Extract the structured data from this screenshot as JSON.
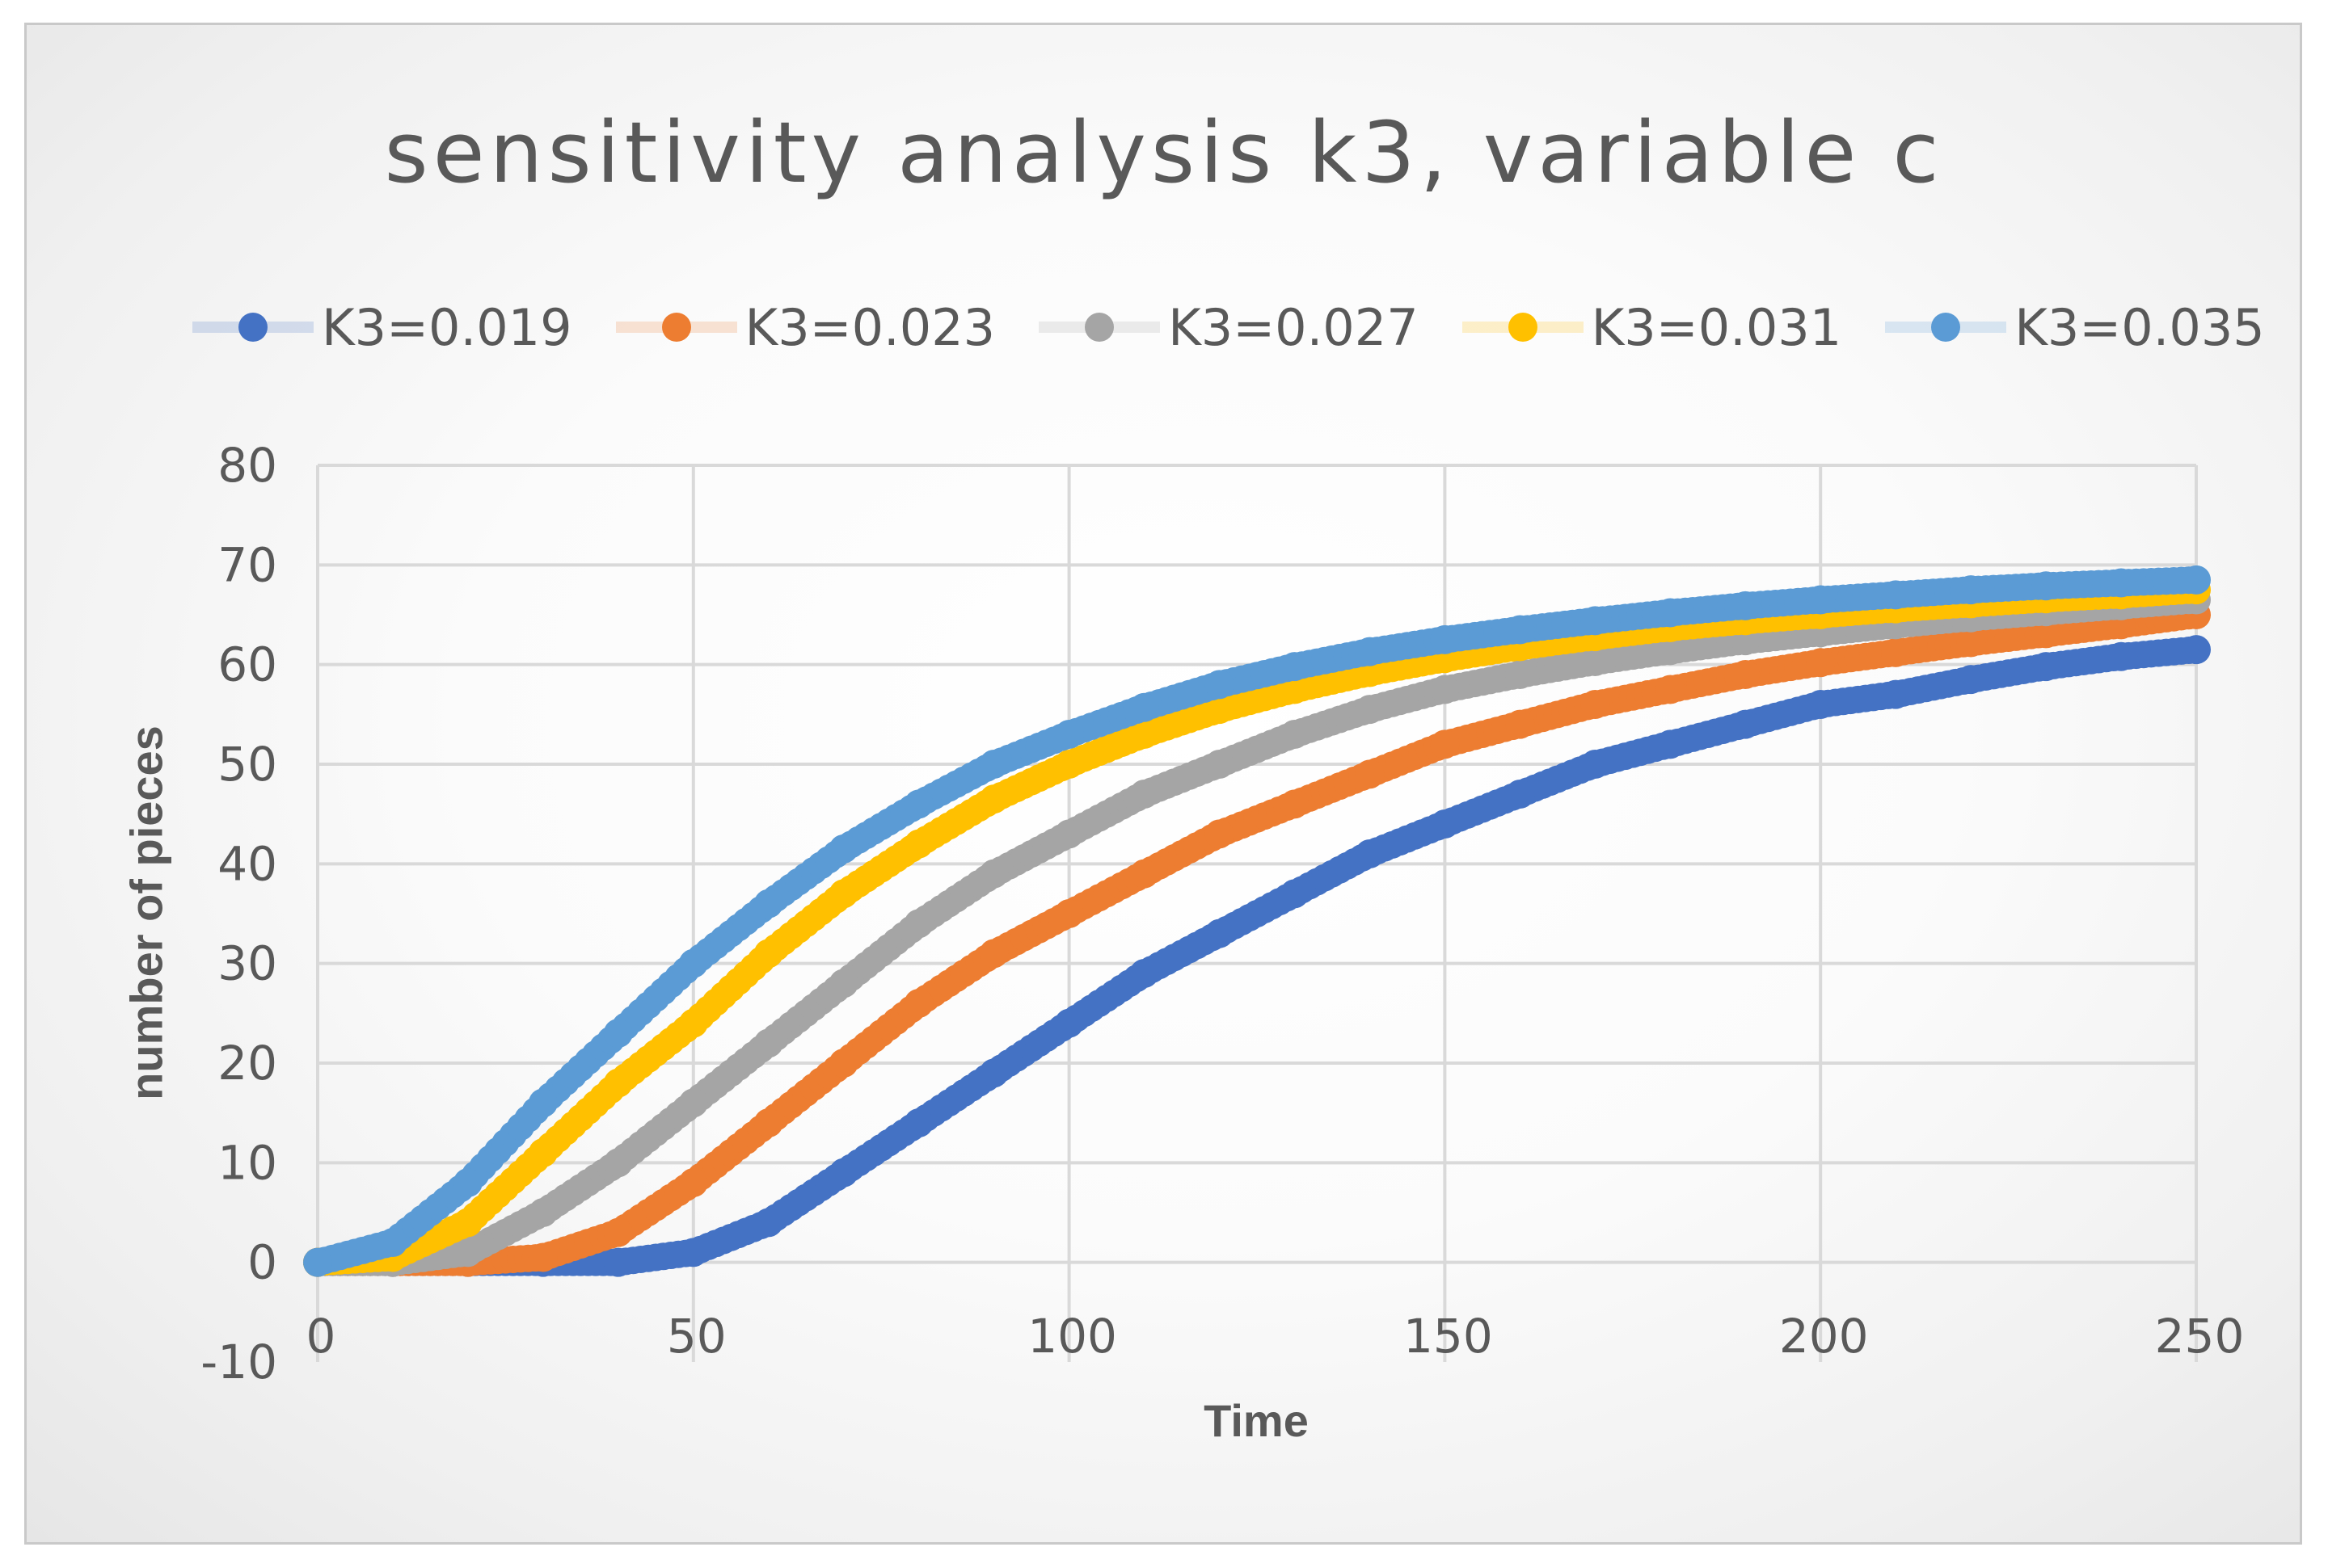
{
  "chart_data": {
    "type": "scatter",
    "title": "sensitivity analysis k3, variable c",
    "xlabel": "Time",
    "ylabel": "number of pieces",
    "xlim": [
      0,
      250
    ],
    "ylim": [
      -10,
      80
    ],
    "xticks": [
      "0",
      "50",
      "100",
      "150",
      "200",
      "250"
    ],
    "yticks": [
      "80",
      "70",
      "60",
      "50",
      "40",
      "30",
      "20",
      "10",
      "0",
      "-10"
    ],
    "grid": true,
    "legend_position": "top",
    "x": [
      0,
      10,
      20,
      30,
      40,
      50,
      60,
      70,
      80,
      90,
      100,
      110,
      120,
      130,
      140,
      150,
      160,
      170,
      180,
      190,
      200,
      210,
      220,
      230,
      240,
      250
    ],
    "series": [
      {
        "name": "K3=0.019",
        "color": "#4472C4",
        "values": [
          0,
          0,
          0,
          0,
          0,
          1,
          4,
          9,
          14,
          19,
          24,
          29,
          33,
          37,
          41,
          44,
          47,
          50,
          52,
          54,
          56,
          57,
          58.5,
          59.8,
          60.8,
          61.5
        ]
      },
      {
        "name": "K3=0.023",
        "color": "#ED7D31",
        "values": [
          0,
          0,
          0,
          0.5,
          3,
          8,
          14,
          20,
          26,
          31,
          35,
          39,
          43,
          46,
          49,
          52,
          54,
          56,
          57.5,
          59,
          60.2,
          61.2,
          62.2,
          63.1,
          64,
          65
        ]
      },
      {
        "name": "K3=0.027",
        "color": "#A5A5A5",
        "values": [
          0,
          0,
          1,
          5,
          10,
          16,
          22,
          28,
          34,
          39,
          43,
          47,
          50,
          53,
          55.5,
          57.5,
          59,
          60.3,
          61.4,
          62.4,
          63.2,
          64,
          64.7,
          65.3,
          65.9,
          66.5
        ]
      },
      {
        "name": "K3=0.031",
        "color": "#FFC000",
        "values": [
          0,
          0.5,
          4,
          11,
          18,
          24,
          31,
          37,
          42,
          46.5,
          50,
          53,
          55.5,
          57.5,
          59.2,
          60.6,
          61.8,
          62.8,
          63.7,
          64.4,
          65,
          65.6,
          66.1,
          66.6,
          67,
          67.5
        ]
      },
      {
        "name": "K3=0.035",
        "color": "#5B9BD5",
        "values": [
          0,
          2,
          8,
          16,
          23,
          30,
          36,
          41.5,
          46,
          50,
          53,
          55.7,
          58,
          59.8,
          61.3,
          62.5,
          63.5,
          64.4,
          65.2,
          65.9,
          66.5,
          67,
          67.5,
          67.9,
          68.2,
          68.5
        ]
      }
    ]
  }
}
